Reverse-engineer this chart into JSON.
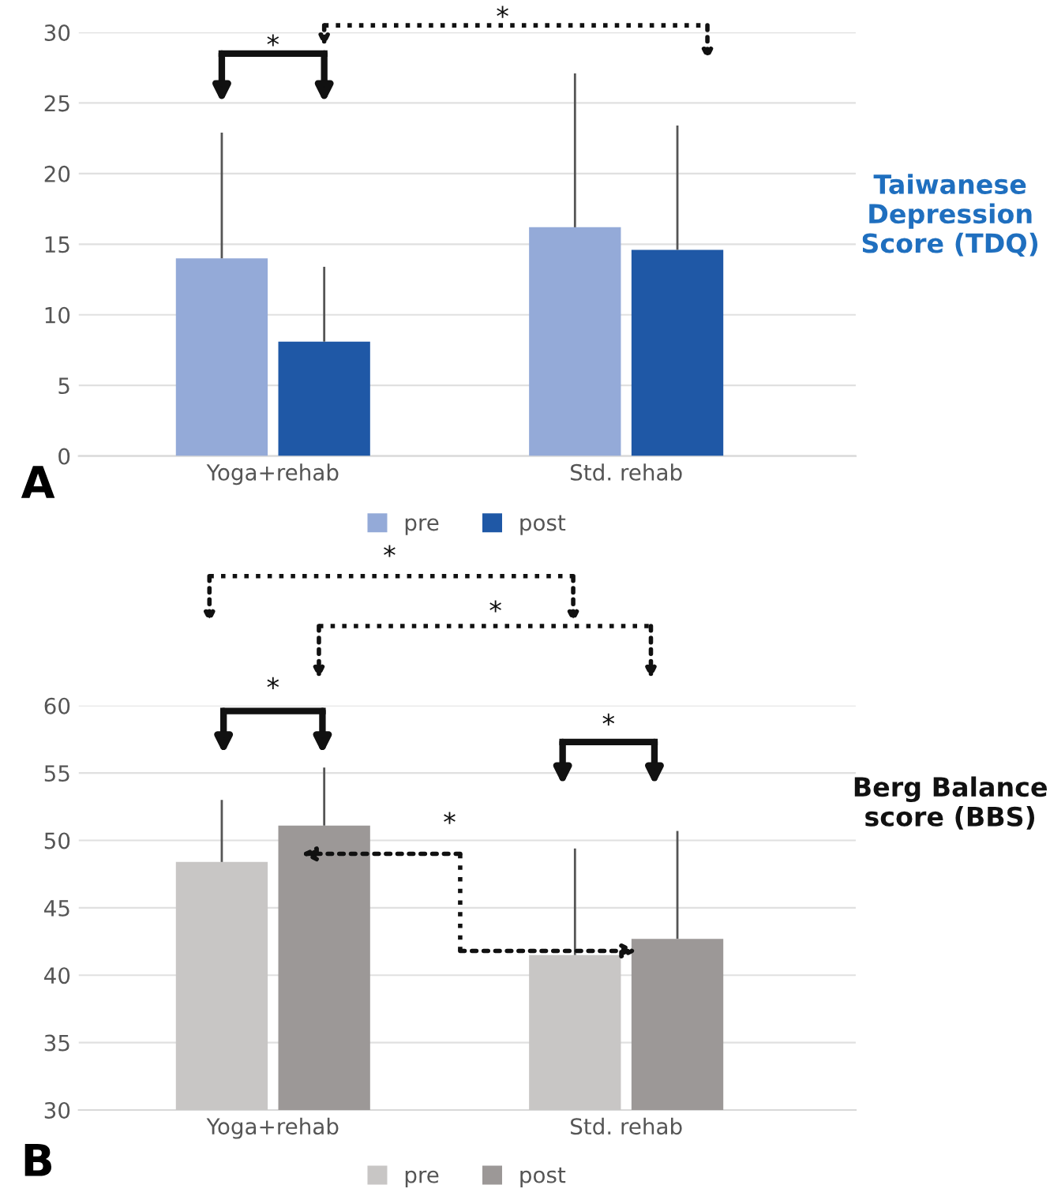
{
  "chart_data": [
    {
      "type": "bar",
      "ylabel": "Taiwanese Depression Score (TDQ)",
      "categories": [
        "Yoga+rehab",
        "Std. rehab"
      ],
      "series": [
        {
          "name": "pre",
          "color": "#94aad8",
          "values": [
            14.0,
            16.2
          ],
          "errors": [
            [
              14.0,
              22.9
            ],
            [
              16.2,
              27.1
            ]
          ]
        },
        {
          "name": "post",
          "color": "#1f58a6",
          "values": [
            8.1,
            14.6
          ],
          "errors": [
            [
              8.1,
              13.4
            ],
            [
              14.6,
              23.4
            ]
          ]
        }
      ],
      "ylim": [
        0,
        30
      ],
      "yticks": [
        0,
        5,
        10,
        15,
        20,
        25,
        30
      ],
      "grid": "y",
      "legend": "bottom",
      "annotations": [
        "A",
        "*",
        "*"
      ]
    },
    {
      "type": "bar",
      "ylabel": "Berg Balance score (BBS)",
      "categories": [
        "Yoga+rehab",
        "Std. rehab"
      ],
      "series": [
        {
          "name": "pre",
          "color": "#c8c6c5",
          "values": [
            48.4,
            41.5
          ],
          "errors": [
            [
              48.4,
              53.0
            ],
            [
              41.5,
              49.4
            ]
          ]
        },
        {
          "name": "post",
          "color": "#9c9897",
          "values": [
            51.1,
            42.7
          ],
          "errors": [
            [
              51.1,
              55.4
            ],
            [
              42.7,
              50.7
            ]
          ]
        }
      ],
      "ylim": [
        30,
        60
      ],
      "yticks": [
        30,
        35,
        40,
        45,
        50,
        55,
        60
      ],
      "grid": "y",
      "legend": "bottom",
      "annotations": [
        "B",
        "*",
        "*",
        "*",
        "*",
        "*"
      ]
    }
  ]
}
